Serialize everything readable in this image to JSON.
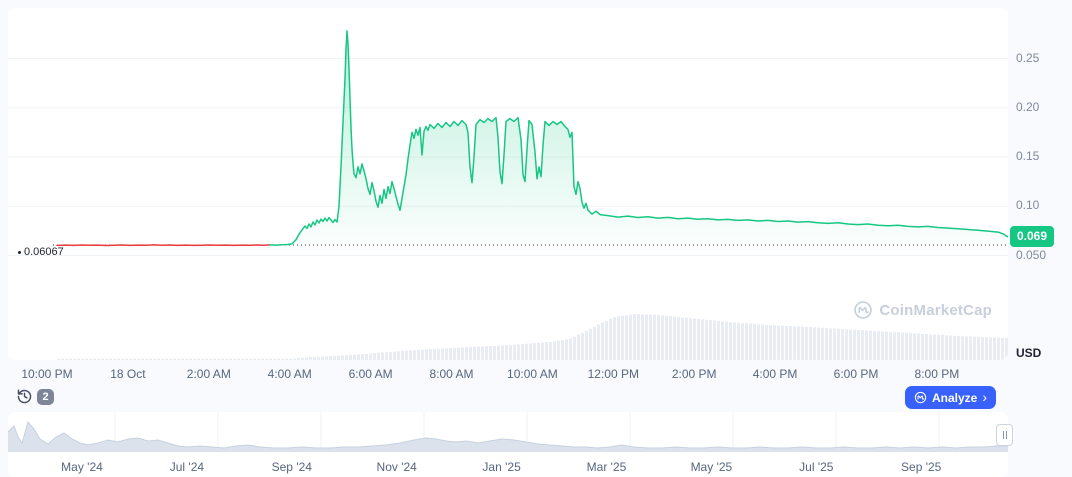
{
  "watermark": {
    "text": "CoinMarketCap"
  },
  "toolbar": {
    "history_count": "2",
    "analyze_label": "Analyze",
    "analyze_chevron": "›"
  },
  "chart_data": {
    "type": "line",
    "title": "",
    "currency": "USD",
    "current_price_label": "0.069",
    "current_price_value": 0.069,
    "previous_close": 0.06067,
    "previous_close_label": "0.06067",
    "colors": {
      "up": "#16c784",
      "down": "#ea3943"
    },
    "volume_color": "#e9edf3",
    "ylim": [
      0.04,
      0.29
    ],
    "y_ticks": [
      {
        "label": "0.25",
        "value": 0.25
      },
      {
        "label": "0.20",
        "value": 0.2
      },
      {
        "label": "0.15",
        "value": 0.15
      },
      {
        "label": "0.10",
        "value": 0.1
      },
      {
        "label": "0.050",
        "value": 0.05
      }
    ],
    "x_ticks": [
      "10:00 PM",
      "18 Oct",
      "2:00 AM",
      "4:00 AM",
      "6:00 AM",
      "8:00 AM",
      "10:00 AM",
      "12:00 PM",
      "2:00 PM",
      "4:00 PM",
      "6:00 PM",
      "8:00 PM"
    ],
    "points": [
      [
        49,
        0.0603
      ],
      [
        58,
        0.0606
      ],
      [
        66,
        0.0603
      ],
      [
        74,
        0.0607
      ],
      [
        82,
        0.0604
      ],
      [
        90,
        0.0606
      ],
      [
        98,
        0.0602
      ],
      [
        106,
        0.0605
      ],
      [
        114,
        0.0607
      ],
      [
        122,
        0.0603
      ],
      [
        130,
        0.0606
      ],
      [
        138,
        0.0604
      ],
      [
        146,
        0.0608
      ],
      [
        154,
        0.0604
      ],
      [
        162,
        0.0607
      ],
      [
        170,
        0.0603
      ],
      [
        178,
        0.0606
      ],
      [
        186,
        0.0603
      ],
      [
        194,
        0.0605
      ],
      [
        202,
        0.0607
      ],
      [
        210,
        0.0604
      ],
      [
        218,
        0.0606
      ],
      [
        226,
        0.0603
      ],
      [
        234,
        0.0606
      ],
      [
        242,
        0.0604
      ],
      [
        250,
        0.0607
      ],
      [
        256,
        0.0605
      ],
      [
        262,
        0.0608
      ],
      [
        268,
        0.0606
      ],
      [
        274,
        0.061
      ],
      [
        280,
        0.0612
      ],
      [
        284,
        0.0618
      ],
      [
        288,
        0.066
      ],
      [
        291,
        0.0715
      ],
      [
        294,
        0.076
      ],
      [
        297,
        0.08
      ],
      [
        299,
        0.0775
      ],
      [
        301,
        0.082
      ],
      [
        303,
        0.079
      ],
      [
        305,
        0.084
      ],
      [
        307,
        0.081
      ],
      [
        309,
        0.086
      ],
      [
        311,
        0.083
      ],
      [
        313,
        0.087
      ],
      [
        315,
        0.0845
      ],
      [
        317,
        0.088
      ],
      [
        319,
        0.085
      ],
      [
        321,
        0.0885
      ],
      [
        323,
        0.086
      ],
      [
        325,
        0.0835
      ],
      [
        327,
        0.0865
      ],
      [
        329,
        0.084
      ],
      [
        331,
        0.1
      ],
      [
        333,
        0.14
      ],
      [
        335,
        0.185
      ],
      [
        337,
        0.23
      ],
      [
        338,
        0.26
      ],
      [
        339,
        0.278
      ],
      [
        340,
        0.265
      ],
      [
        341,
        0.24
      ],
      [
        342,
        0.21
      ],
      [
        343,
        0.18
      ],
      [
        344,
        0.158
      ],
      [
        345,
        0.144
      ],
      [
        346,
        0.133
      ],
      [
        348,
        0.129
      ],
      [
        350,
        0.14
      ],
      [
        352,
        0.133
      ],
      [
        354,
        0.143
      ],
      [
        356,
        0.136
      ],
      [
        358,
        0.128
      ],
      [
        360,
        0.118
      ],
      [
        362,
        0.112
      ],
      [
        364,
        0.124
      ],
      [
        366,
        0.116
      ],
      [
        368,
        0.105
      ],
      [
        370,
        0.099
      ],
      [
        372,
        0.111
      ],
      [
        374,
        0.103
      ],
      [
        376,
        0.117
      ],
      [
        378,
        0.108
      ],
      [
        380,
        0.12
      ],
      [
        382,
        0.113
      ],
      [
        384,
        0.125
      ],
      [
        386,
        0.118
      ],
      [
        388,
        0.11
      ],
      [
        390,
        0.102
      ],
      [
        392,
        0.096
      ],
      [
        394,
        0.108
      ],
      [
        396,
        0.12
      ],
      [
        398,
        0.132
      ],
      [
        400,
        0.148
      ],
      [
        402,
        0.162
      ],
      [
        404,
        0.175
      ],
      [
        406,
        0.169
      ],
      [
        408,
        0.178
      ],
      [
        410,
        0.172
      ],
      [
        412,
        0.18
      ],
      [
        414,
        0.152
      ],
      [
        416,
        0.176
      ],
      [
        418,
        0.181
      ],
      [
        420,
        0.177
      ],
      [
        422,
        0.183
      ],
      [
        426,
        0.179
      ],
      [
        430,
        0.184
      ],
      [
        434,
        0.18
      ],
      [
        438,
        0.185
      ],
      [
        442,
        0.181
      ],
      [
        446,
        0.186
      ],
      [
        450,
        0.182
      ],
      [
        454,
        0.187
      ],
      [
        458,
        0.183
      ],
      [
        460,
        0.175
      ],
      [
        462,
        0.14
      ],
      [
        464,
        0.124
      ],
      [
        466,
        0.15
      ],
      [
        468,
        0.183
      ],
      [
        472,
        0.188
      ],
      [
        476,
        0.185
      ],
      [
        480,
        0.189
      ],
      [
        484,
        0.186
      ],
      [
        488,
        0.19
      ],
      [
        490,
        0.17
      ],
      [
        492,
        0.135
      ],
      [
        494,
        0.123
      ],
      [
        496,
        0.152
      ],
      [
        498,
        0.186
      ],
      [
        502,
        0.189
      ],
      [
        506,
        0.186
      ],
      [
        510,
        0.19
      ],
      [
        513,
        0.168
      ],
      [
        515,
        0.132
      ],
      [
        517,
        0.125
      ],
      [
        519,
        0.158
      ],
      [
        521,
        0.187
      ],
      [
        524,
        0.183
      ],
      [
        527,
        0.155
      ],
      [
        529,
        0.128
      ],
      [
        531,
        0.14
      ],
      [
        533,
        0.13
      ],
      [
        535,
        0.162
      ],
      [
        537,
        0.186
      ],
      [
        541,
        0.182
      ],
      [
        545,
        0.186
      ],
      [
        549,
        0.183
      ],
      [
        553,
        0.186
      ],
      [
        557,
        0.181
      ],
      [
        560,
        0.178
      ],
      [
        562,
        0.17
      ],
      [
        564,
        0.175
      ],
      [
        566,
        0.12
      ],
      [
        568,
        0.112
      ],
      [
        570,
        0.125
      ],
      [
        572,
        0.118
      ],
      [
        574,
        0.104
      ],
      [
        576,
        0.098
      ],
      [
        578,
        0.103
      ],
      [
        580,
        0.096
      ],
      [
        584,
        0.092
      ],
      [
        588,
        0.095
      ],
      [
        592,
        0.0915
      ],
      [
        600,
        0.0905
      ],
      [
        610,
        0.089
      ],
      [
        620,
        0.09
      ],
      [
        630,
        0.0886
      ],
      [
        640,
        0.0893
      ],
      [
        650,
        0.088
      ],
      [
        660,
        0.0887
      ],
      [
        670,
        0.0874
      ],
      [
        680,
        0.088
      ],
      [
        690,
        0.0868
      ],
      [
        700,
        0.0874
      ],
      [
        710,
        0.0862
      ],
      [
        720,
        0.0867
      ],
      [
        730,
        0.0856
      ],
      [
        740,
        0.0862
      ],
      [
        750,
        0.085
      ],
      [
        760,
        0.0856
      ],
      [
        770,
        0.0845
      ],
      [
        780,
        0.085
      ],
      [
        790,
        0.0839
      ],
      [
        800,
        0.0844
      ],
      [
        810,
        0.0832
      ],
      [
        820,
        0.0826
      ],
      [
        830,
        0.0832
      ],
      [
        840,
        0.082
      ],
      [
        850,
        0.0814
      ],
      [
        860,
        0.082
      ],
      [
        870,
        0.0808
      ],
      [
        880,
        0.0802
      ],
      [
        890,
        0.0808
      ],
      [
        900,
        0.0796
      ],
      [
        910,
        0.079
      ],
      [
        920,
        0.0796
      ],
      [
        930,
        0.0784
      ],
      [
        940,
        0.0778
      ],
      [
        950,
        0.0772
      ],
      [
        960,
        0.0764
      ],
      [
        970,
        0.0756
      ],
      [
        980,
        0.0748
      ],
      [
        990,
        0.0738
      ],
      [
        995,
        0.072
      ],
      [
        998,
        0.07
      ],
      [
        1000,
        0.069
      ]
    ],
    "volume_profile": [
      [
        49,
        1
      ],
      [
        200,
        1
      ],
      [
        280,
        1
      ],
      [
        300,
        3
      ],
      [
        340,
        5
      ],
      [
        380,
        8
      ],
      [
        420,
        11
      ],
      [
        460,
        13
      ],
      [
        500,
        15
      ],
      [
        540,
        18
      ],
      [
        560,
        21
      ],
      [
        575,
        28
      ],
      [
        590,
        36
      ],
      [
        605,
        43
      ],
      [
        625,
        46
      ],
      [
        650,
        45
      ],
      [
        680,
        42
      ],
      [
        720,
        38
      ],
      [
        760,
        35
      ],
      [
        800,
        33
      ],
      [
        850,
        30
      ],
      [
        900,
        27
      ],
      [
        950,
        24
      ],
      [
        1000,
        22
      ]
    ],
    "minimap": {
      "x_ticks": [
        "May '24",
        "Jul '24",
        "Sep '24",
        "Nov '24",
        "Jan '25",
        "Mar '25",
        "May '25",
        "Jul '25",
        "Sep '25"
      ],
      "gridlines": [
        107,
        210,
        313,
        416,
        519,
        622,
        725,
        828,
        931
      ],
      "fill": "#dbe2ec",
      "stroke": "#c7d1df",
      "heights": [
        [
          0,
          20
        ],
        [
          6,
          26
        ],
        [
          10,
          15
        ],
        [
          14,
          9
        ],
        [
          20,
          30
        ],
        [
          26,
          23
        ],
        [
          32,
          13
        ],
        [
          40,
          8
        ],
        [
          48,
          15
        ],
        [
          56,
          19
        ],
        [
          64,
          13
        ],
        [
          72,
          9
        ],
        [
          80,
          7
        ],
        [
          90,
          9
        ],
        [
          100,
          12
        ],
        [
          110,
          10
        ],
        [
          120,
          13
        ],
        [
          130,
          14
        ],
        [
          140,
          11
        ],
        [
          150,
          12
        ],
        [
          160,
          9
        ],
        [
          170,
          6
        ],
        [
          180,
          5
        ],
        [
          192,
          6
        ],
        [
          204,
          5
        ],
        [
          216,
          4
        ],
        [
          228,
          6
        ],
        [
          240,
          7
        ],
        [
          252,
          5
        ],
        [
          266,
          4
        ],
        [
          280,
          4
        ],
        [
          294,
          5
        ],
        [
          308,
          4
        ],
        [
          322,
          4
        ],
        [
          336,
          5
        ],
        [
          350,
          5
        ],
        [
          364,
          6
        ],
        [
          378,
          7
        ],
        [
          392,
          9
        ],
        [
          406,
          12
        ],
        [
          418,
          14
        ],
        [
          428,
          13
        ],
        [
          438,
          11
        ],
        [
          448,
          10
        ],
        [
          458,
          11
        ],
        [
          470,
          9
        ],
        [
          482,
          11
        ],
        [
          494,
          13
        ],
        [
          506,
          12
        ],
        [
          518,
          10
        ],
        [
          530,
          8
        ],
        [
          542,
          7
        ],
        [
          554,
          6
        ],
        [
          566,
          5
        ],
        [
          578,
          5
        ],
        [
          590,
          4
        ],
        [
          602,
          5
        ],
        [
          614,
          7
        ],
        [
          626,
          5
        ],
        [
          640,
          4
        ],
        [
          654,
          4
        ],
        [
          668,
          5
        ],
        [
          682,
          4
        ],
        [
          696,
          4
        ],
        [
          710,
          5
        ],
        [
          724,
          4
        ],
        [
          738,
          4
        ],
        [
          752,
          5
        ],
        [
          766,
          4
        ],
        [
          780,
          4
        ],
        [
          794,
          5
        ],
        [
          808,
          4
        ],
        [
          822,
          4
        ],
        [
          836,
          5
        ],
        [
          850,
          4
        ],
        [
          864,
          4
        ],
        [
          878,
          5
        ],
        [
          892,
          4
        ],
        [
          906,
          5
        ],
        [
          920,
          4
        ],
        [
          934,
          5
        ],
        [
          948,
          4
        ],
        [
          962,
          5
        ],
        [
          976,
          5
        ],
        [
          988,
          6
        ],
        [
          1000,
          6
        ]
      ]
    }
  }
}
